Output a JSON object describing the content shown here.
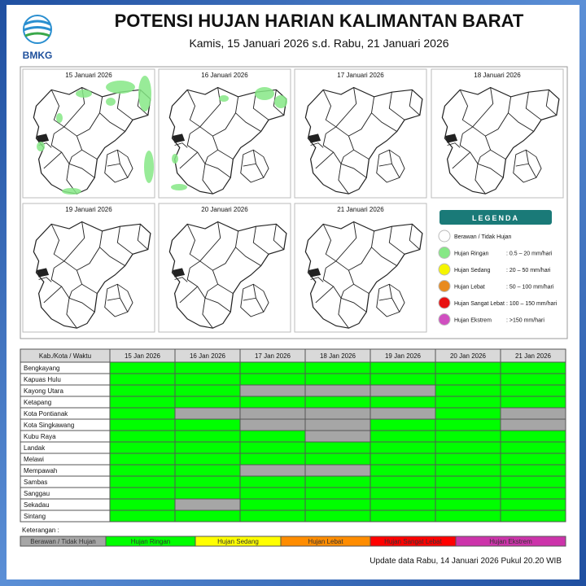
{
  "header": {
    "logo": "BMKG",
    "title": "POTENSI HUJAN HARIAN KALIMANTAN BARAT",
    "subtitle": "Kamis, 15 Januari 2026 s.d. Rabu, 21 Januari 2026"
  },
  "maps": [
    {
      "label": "15 Januari 2026"
    },
    {
      "label": "16 Januari 2026"
    },
    {
      "label": "17 Januari 2026"
    },
    {
      "label": "18 Januari 2026"
    },
    {
      "label": "19 Januari 2026"
    },
    {
      "label": "20 Januari 2026"
    },
    {
      "label": "21 Januari 2026"
    }
  ],
  "legend": {
    "title": "LEGENDA",
    "items": [
      {
        "label": "Berawan / Tidak Hujan",
        "color": "#ffffff"
      },
      {
        "label": "Hujan Ringan",
        "range": ": 0.5 – 20 mm/hari",
        "color": "#86e886"
      },
      {
        "label": "Hujan Sedang",
        "range": ": 20 – 50 mm/hari",
        "color": "#f5f500"
      },
      {
        "label": "Hujan Lebat",
        "range": ": 50 – 100 mm/hari",
        "color": "#e88a1e"
      },
      {
        "label": "Hujan Sangat Lebat",
        "range": ": 100 – 150 mm/hari",
        "color": "#e81010"
      },
      {
        "label": "Hujan Ekstrem",
        "range": ": >150 mm/hari",
        "color": "#d04fc0"
      }
    ]
  },
  "table": {
    "header": [
      "Kab./Kota / Waktu",
      "15 Jan 2026",
      "16 Jan 2026",
      "17 Jan 2026",
      "18 Jan 2026",
      "19 Jan 2026",
      "20 Jan 2026",
      "21 Jan 2026"
    ],
    "rows": [
      {
        "name": "Bengkayang",
        "cells": [
          1,
          1,
          1,
          1,
          1,
          1,
          1
        ]
      },
      {
        "name": "Kapuas Hulu",
        "cells": [
          1,
          1,
          1,
          1,
          1,
          1,
          1
        ]
      },
      {
        "name": "Kayong Utara",
        "cells": [
          1,
          1,
          0,
          0,
          0,
          1,
          1
        ]
      },
      {
        "name": "Ketapang",
        "cells": [
          1,
          1,
          1,
          1,
          1,
          1,
          1
        ]
      },
      {
        "name": "Kota Pontianak",
        "cells": [
          1,
          0,
          0,
          0,
          0,
          1,
          0
        ]
      },
      {
        "name": "Kota Singkawang",
        "cells": [
          1,
          1,
          0,
          0,
          1,
          1,
          0
        ]
      },
      {
        "name": "Kubu Raya",
        "cells": [
          1,
          1,
          1,
          0,
          1,
          1,
          1
        ]
      },
      {
        "name": "Landak",
        "cells": [
          1,
          1,
          1,
          1,
          1,
          1,
          1
        ]
      },
      {
        "name": "Melawi",
        "cells": [
          1,
          1,
          1,
          1,
          1,
          1,
          1
        ]
      },
      {
        "name": "Mempawah",
        "cells": [
          1,
          1,
          0,
          0,
          1,
          1,
          1
        ]
      },
      {
        "name": "Sambas",
        "cells": [
          1,
          1,
          1,
          1,
          1,
          1,
          1
        ]
      },
      {
        "name": "Sanggau",
        "cells": [
          1,
          1,
          1,
          1,
          1,
          1,
          1
        ]
      },
      {
        "name": "Sekadau",
        "cells": [
          1,
          0,
          1,
          1,
          1,
          1,
          1
        ]
      },
      {
        "name": "Sintang",
        "cells": [
          1,
          1,
          1,
          1,
          1,
          1,
          1
        ]
      }
    ]
  },
  "keterangan": {
    "title": "Keterangan :",
    "items": [
      {
        "label": "Berawan / Tidak Hujan",
        "color": "#a6a6a6"
      },
      {
        "label": "Hujan Ringan",
        "color": "#00ff00"
      },
      {
        "label": "Hujan Sedang",
        "color": "#ffff00"
      },
      {
        "label": "Hujan Lebat",
        "color": "#ff8c00"
      },
      {
        "label": "Hujan Sangat Lebat",
        "color": "#ff0000"
      },
      {
        "label": "Hujan Ekstrem",
        "color": "#cc33aa"
      }
    ]
  },
  "footer": "Update data Rabu, 14 Januari 2026 Pukul 20.20 WIB"
}
